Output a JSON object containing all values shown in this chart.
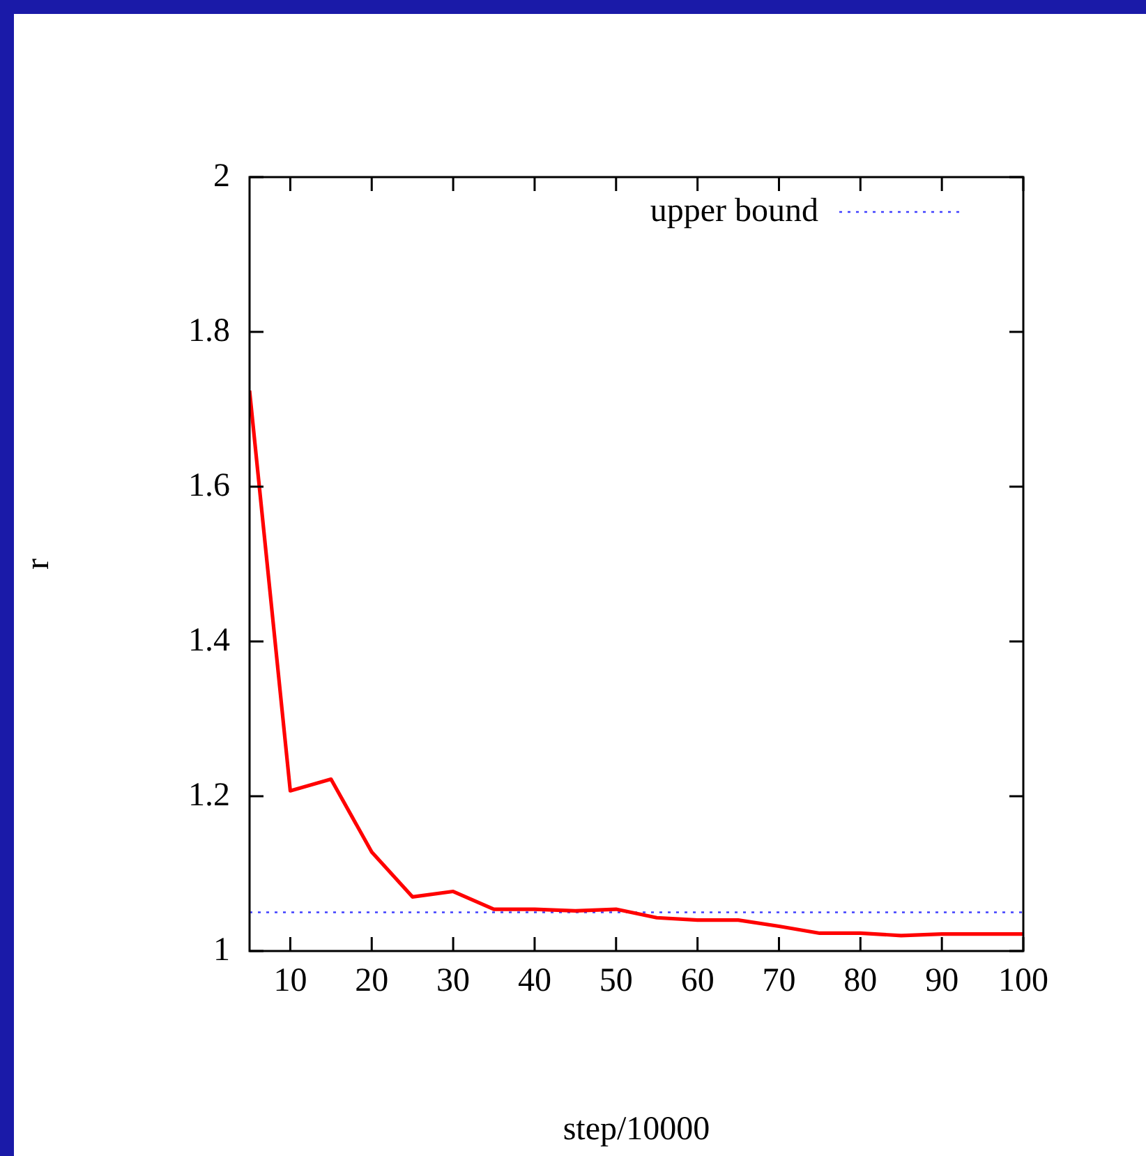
{
  "chart_data": {
    "type": "line",
    "xlabel": "step/10000",
    "ylabel": "r",
    "x": [
      5,
      10,
      15,
      20,
      25,
      30,
      35,
      40,
      45,
      50,
      55,
      60,
      65,
      70,
      75,
      80,
      85,
      90,
      95,
      100
    ],
    "series": [
      {
        "color": "#ff0000",
        "values": [
          1.724,
          1.207,
          1.222,
          1.128,
          1.07,
          1.077,
          1.054,
          1.054,
          1.052,
          1.054,
          1.043,
          1.04,
          1.04,
          1.032,
          1.023,
          1.023,
          1.02,
          1.022,
          1.022,
          1.022
        ]
      },
      {
        "name": "upper bound",
        "color": "#4040ff",
        "line_style": "dotted",
        "x": [
          5,
          100
        ],
        "values": [
          1.05,
          1.05
        ]
      }
    ],
    "xlim": [
      5,
      100
    ],
    "xticks": [
      10,
      20,
      30,
      40,
      50,
      60,
      70,
      80,
      90,
      100
    ],
    "ylim": [
      1,
      2
    ],
    "yticks": [
      1,
      1.2,
      1.4,
      1.6,
      1.8,
      2
    ],
    "grid": false,
    "legend": "top right",
    "marker": "none"
  }
}
